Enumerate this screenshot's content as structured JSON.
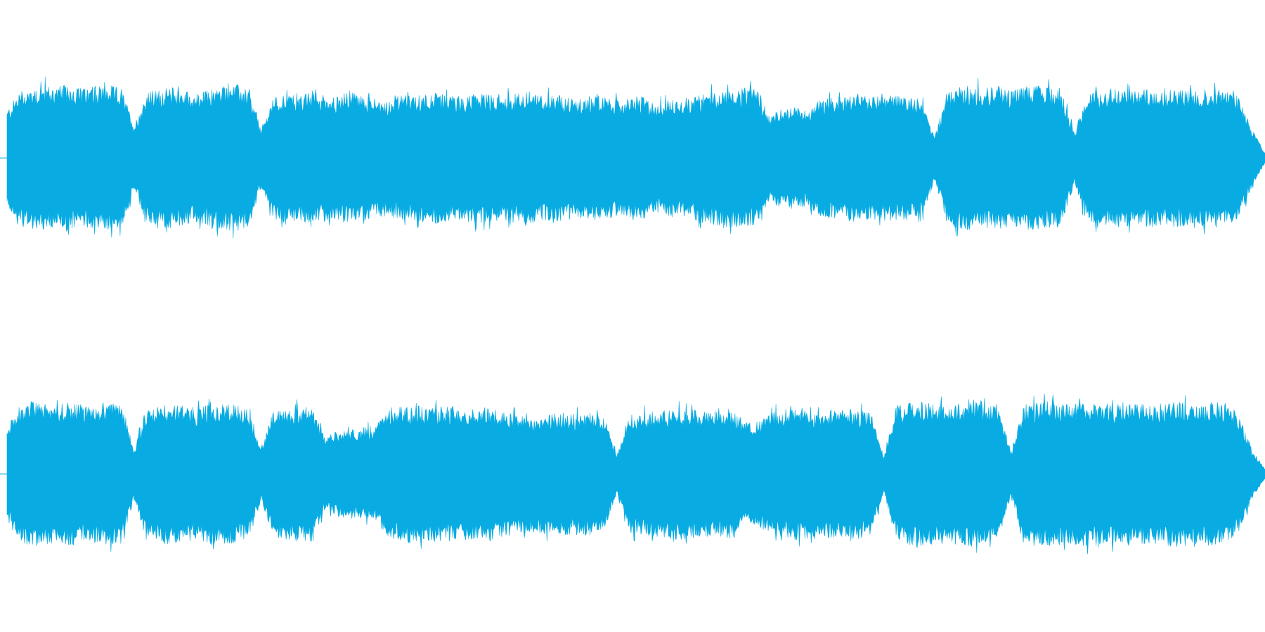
{
  "waveform": {
    "color": "#08ace3",
    "channels": [
      {
        "name": "",
        "envelope": [
          0.58,
          0.82,
          0.86,
          0.88,
          0.87,
          0.89,
          0.84,
          0.86,
          0.88,
          0.85,
          0.4,
          0.8,
          0.83,
          0.86,
          0.82,
          0.78,
          0.84,
          0.88,
          0.9,
          0.82,
          0.36,
          0.74,
          0.78,
          0.76,
          0.8,
          0.77,
          0.74,
          0.82,
          0.76,
          0.72,
          0.7,
          0.77,
          0.74,
          0.8,
          0.78,
          0.76,
          0.74,
          0.8,
          0.77,
          0.75,
          0.78,
          0.8,
          0.76,
          0.79,
          0.74,
          0.72,
          0.76,
          0.74,
          0.7,
          0.72,
          0.74,
          0.66,
          0.7,
          0.72,
          0.74,
          0.8,
          0.82,
          0.84,
          0.85,
          0.83,
          0.52,
          0.6,
          0.62,
          0.58,
          0.72,
          0.74,
          0.76,
          0.78,
          0.74,
          0.76,
          0.77,
          0.75,
          0.72,
          0.26,
          0.82,
          0.86,
          0.88,
          0.85,
          0.87,
          0.84,
          0.86,
          0.88,
          0.85,
          0.83,
          0.3,
          0.8,
          0.82,
          0.84,
          0.83,
          0.82,
          0.84,
          0.83,
          0.85,
          0.82,
          0.83,
          0.84,
          0.82,
          0.72,
          0.34,
          0.06
        ]
      },
      {
        "name": "",
        "envelope": [
          0.56,
          0.84,
          0.88,
          0.86,
          0.84,
          0.86,
          0.85,
          0.83,
          0.86,
          0.84,
          0.3,
          0.82,
          0.84,
          0.86,
          0.82,
          0.8,
          0.84,
          0.86,
          0.83,
          0.8,
          0.32,
          0.78,
          0.8,
          0.83,
          0.82,
          0.44,
          0.52,
          0.54,
          0.56,
          0.58,
          0.78,
          0.82,
          0.84,
          0.8,
          0.82,
          0.83,
          0.8,
          0.78,
          0.82,
          0.76,
          0.74,
          0.7,
          0.72,
          0.76,
          0.74,
          0.72,
          0.74,
          0.68,
          0.26,
          0.72,
          0.74,
          0.76,
          0.78,
          0.8,
          0.78,
          0.76,
          0.78,
          0.8,
          0.62,
          0.64,
          0.74,
          0.78,
          0.8,
          0.78,
          0.76,
          0.78,
          0.8,
          0.78,
          0.74,
          0.22,
          0.82,
          0.86,
          0.88,
          0.84,
          0.86,
          0.85,
          0.88,
          0.84,
          0.82,
          0.26,
          0.84,
          0.86,
          0.88,
          0.86,
          0.85,
          0.88,
          0.86,
          0.84,
          0.88,
          0.86,
          0.84,
          0.86,
          0.88,
          0.86,
          0.84,
          0.87,
          0.86,
          0.7,
          0.3,
          0.06
        ]
      }
    ]
  }
}
